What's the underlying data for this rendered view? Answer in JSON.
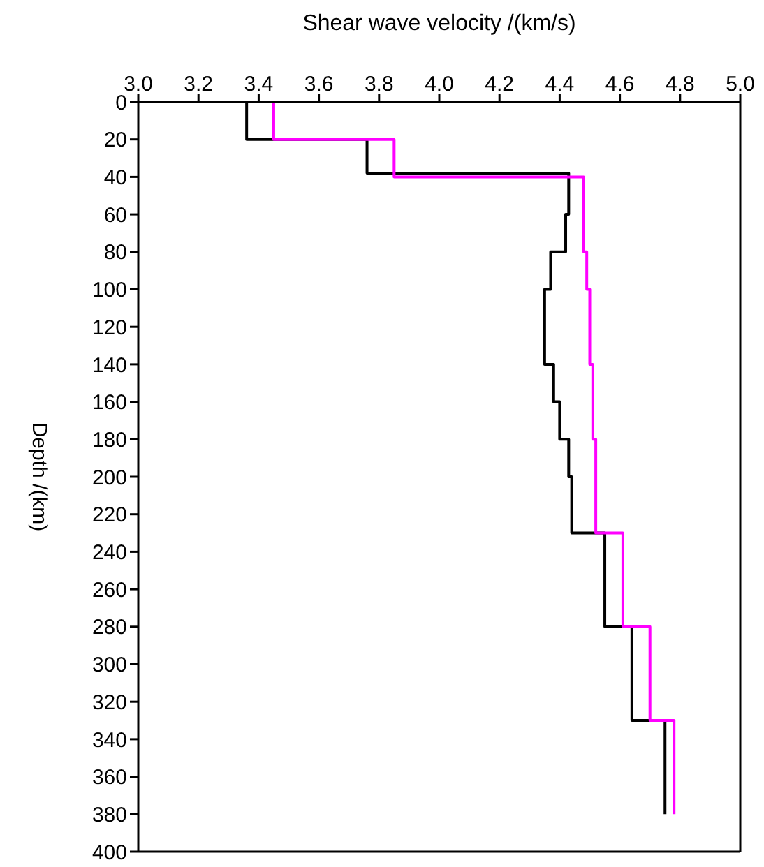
{
  "chart_data": {
    "type": "step",
    "orientation": "horizontal",
    "xlabel": "Shear wave velocity /(km/s)",
    "ylabel": "Depth /(km)",
    "xlim": [
      3,
      5
    ],
    "xticks": [
      {
        "value": 3,
        "label": "3.0"
      },
      3.2,
      3.4,
      3.6,
      3.8,
      {
        "value": 4,
        "label": "4.0"
      },
      4.2,
      4.4,
      4.6,
      4.8,
      {
        "value": 5,
        "label": "5.0"
      }
    ],
    "ylim": [
      400,
      0
    ],
    "yticks": [
      0,
      20,
      40,
      60,
      80,
      100,
      120,
      140,
      160,
      180,
      200,
      220,
      240,
      260,
      280,
      300,
      320,
      340,
      360,
      380,
      400
    ],
    "legend": false,
    "marker": "none",
    "line_style": "solid",
    "series": [
      {
        "color": "#000000",
        "x": [
          0,
          20,
          38,
          60,
          80,
          100,
          140,
          160,
          180,
          200,
          230,
          280,
          330,
          380
        ],
        "values": [
          3.36,
          3.76,
          4.43,
          4.42,
          4.37,
          4.35,
          4.38,
          4.4,
          4.43,
          4.44,
          4.55,
          4.64,
          4.75,
          4.75
        ]
      },
      {
        "color": "#ff00ff",
        "x": [
          0,
          20,
          40,
          80,
          100,
          140,
          180,
          230,
          280,
          330,
          380
        ],
        "values": [
          3.45,
          3.85,
          4.48,
          4.49,
          4.5,
          4.51,
          4.52,
          4.61,
          4.7,
          4.78,
          4.78
        ]
      }
    ]
  }
}
